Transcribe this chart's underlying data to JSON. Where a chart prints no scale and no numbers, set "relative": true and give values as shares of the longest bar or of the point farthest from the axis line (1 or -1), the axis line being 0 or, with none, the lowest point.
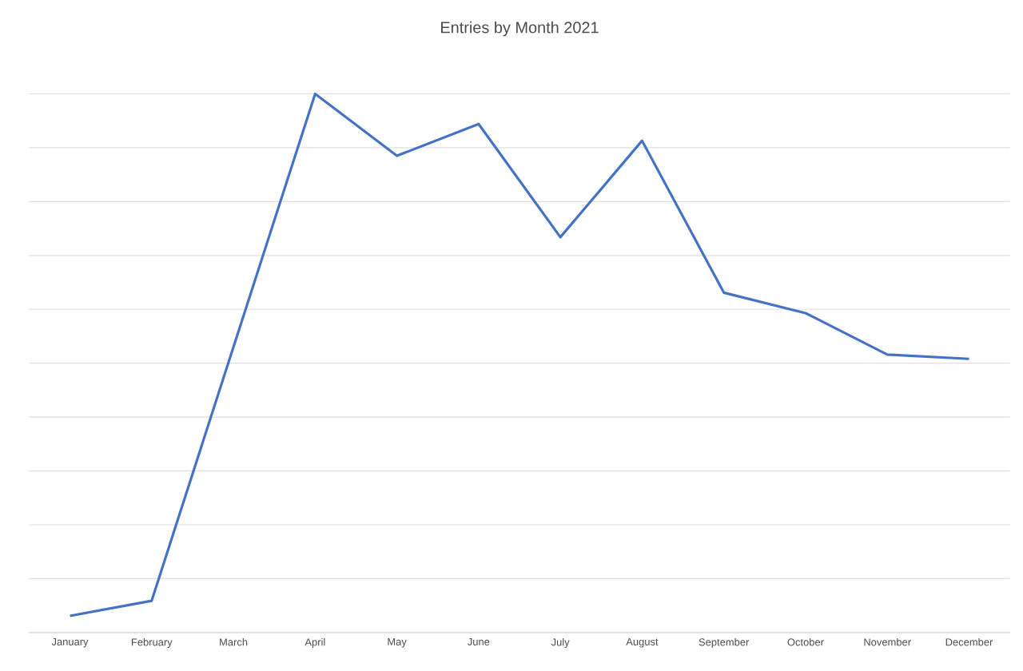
{
  "chart_data": {
    "type": "line",
    "title": "Entries by Month 2021",
    "relative": true,
    "grid": "y",
    "categories": [
      "January",
      "February",
      "March",
      "April",
      "May",
      "June",
      "July",
      "August",
      "September",
      "October",
      "November",
      "December"
    ],
    "series": [
      {
        "color": "#4472c4",
        "values": [
          0.031,
          0.059,
          0.53,
          1,
          0.885,
          0.944,
          0.734,
          0.913,
          0.631,
          0.593,
          0.516,
          0.508
        ]
      }
    ]
  }
}
